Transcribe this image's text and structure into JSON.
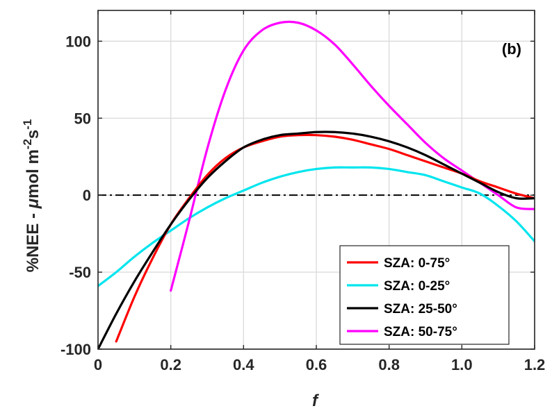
{
  "chart_data": {
    "type": "line",
    "panel_label": "(b)",
    "xlabel": "f",
    "ylabel": {
      "pre": "%NEE - ",
      "mu": "μ",
      "mid": "mol m",
      "sup1": "-2",
      "s": "s",
      "sup2": "-1"
    },
    "xlim": [
      0,
      1.2
    ],
    "ylim": [
      -100,
      120
    ],
    "xticks": [
      0,
      0.2,
      0.4,
      0.6,
      0.8,
      1.0,
      1.2
    ],
    "xtick_labels": [
      "0",
      "0.2",
      "0.4",
      "0.6",
      "0.8",
      "1.0",
      "1.2"
    ],
    "yticks": [
      -100,
      -50,
      0,
      50,
      100
    ],
    "ytick_labels": [
      "-100",
      "-50",
      "0",
      "50",
      "100"
    ],
    "grid": true,
    "zero_line": 0,
    "legend_position": "bottom-right",
    "x": [
      0,
      0.05,
      0.1,
      0.15,
      0.2,
      0.25,
      0.3,
      0.35,
      0.4,
      0.45,
      0.5,
      0.55,
      0.6,
      0.65,
      0.7,
      0.75,
      0.8,
      0.85,
      0.9,
      0.95,
      1.0,
      1.05,
      1.1,
      1.15,
      1.2
    ],
    "series": [
      {
        "name": "SZA: 0-75°",
        "color": "#ff0000",
        "values": [
          null,
          -95,
          -66,
          -41,
          -19,
          -2,
          13,
          24,
          31,
          35,
          38,
          39,
          39,
          38,
          36,
          33,
          30,
          26,
          22,
          18,
          14,
          9,
          5,
          1,
          -2
        ]
      },
      {
        "name": "SZA: 0-25°",
        "color": "#00e5ee",
        "values": [
          -59,
          -50,
          -40,
          -31,
          -23,
          -15,
          -8,
          -2,
          3,
          8,
          12,
          15,
          17,
          18,
          18,
          18,
          17,
          15,
          13,
          9,
          5,
          1,
          -7,
          -17,
          -30
        ]
      },
      {
        "name": "SZA: 25-50°",
        "color": "#000000",
        "values": [
          -100,
          -77,
          -56,
          -37,
          -19,
          -3,
          11,
          22,
          31,
          36,
          39,
          40,
          41,
          41,
          40,
          38,
          35,
          31,
          26,
          20,
          14,
          8,
          2,
          -2,
          -2
        ]
      },
      {
        "name": "SZA: 50-75°",
        "color": "#ff00ff",
        "values": [
          null,
          null,
          null,
          null,
          -62,
          -17,
          30,
          68,
          94,
          107,
          112,
          112,
          107,
          98,
          85,
          71,
          58,
          46,
          34,
          24,
          16,
          8,
          0,
          -8,
          -9
        ]
      }
    ]
  }
}
